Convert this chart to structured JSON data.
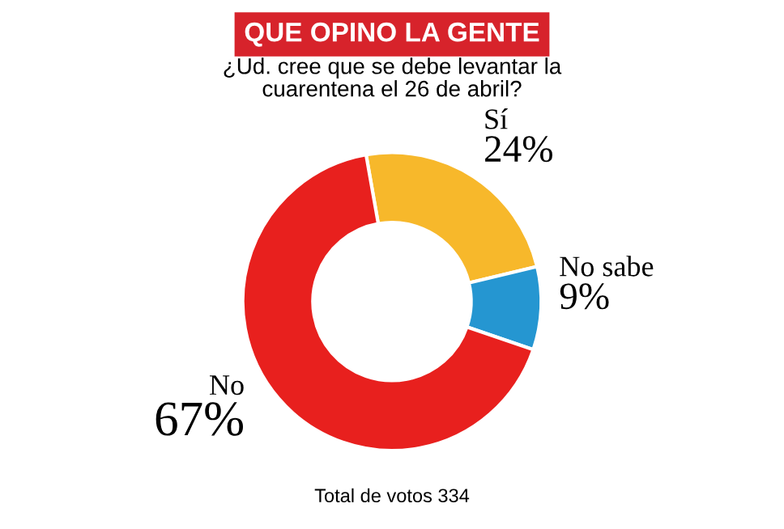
{
  "chart_data": {
    "type": "donut",
    "title": "QUE OPINO LA GENTE",
    "subtitle": "¿Ud. cree que se debe levantar la\ncuarentena el 26 de abril?",
    "categories": [
      "Sí",
      "No sabe",
      "No"
    ],
    "values": [
      24,
      9,
      67
    ],
    "colors": [
      "#f7b82b",
      "#2596d1",
      "#e8201e"
    ],
    "value_labels": [
      "24%",
      "9%",
      "67%"
    ],
    "annotations": [
      "Total de votos 334"
    ]
  }
}
